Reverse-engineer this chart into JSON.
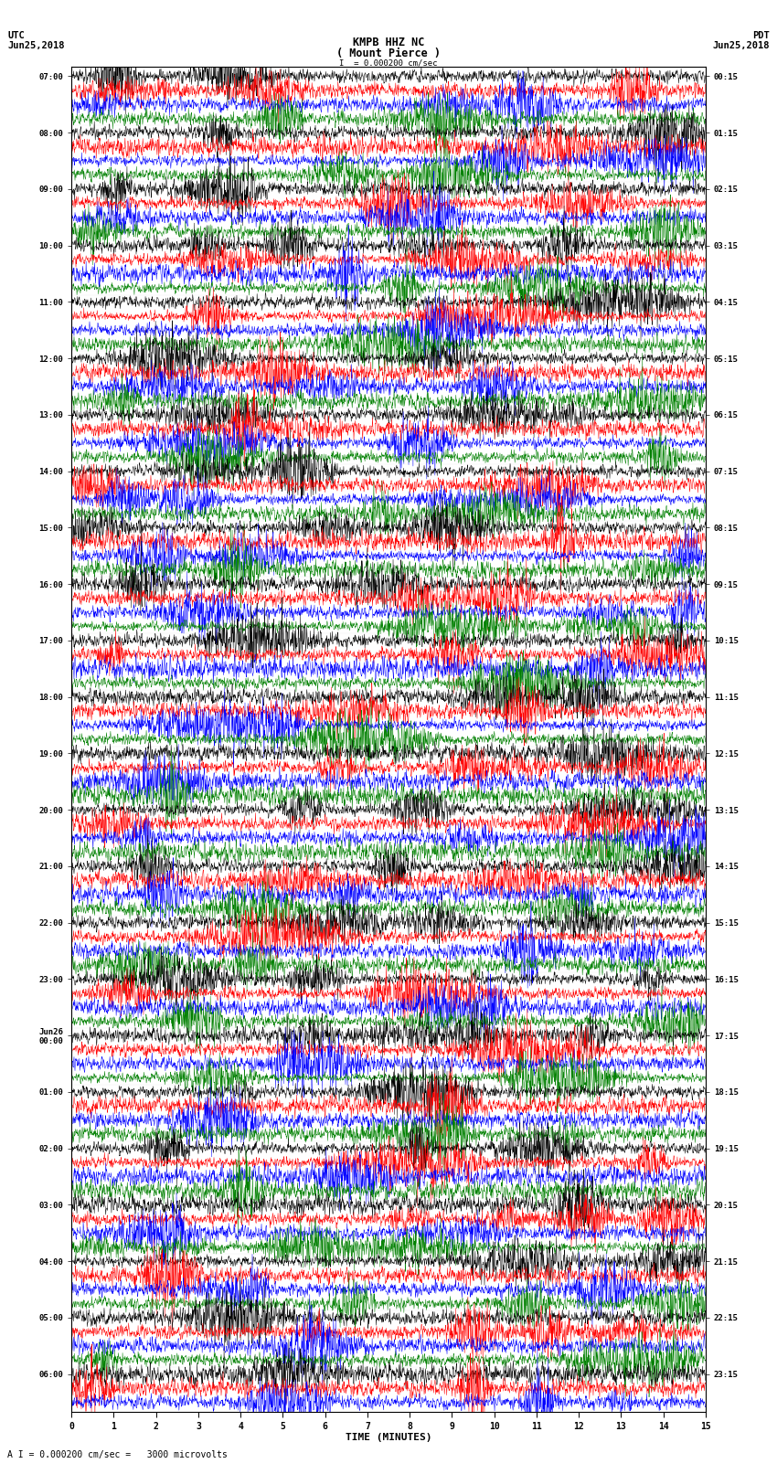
{
  "title_line1": "KMPB HHZ NC",
  "title_line2": "( Mount Pierce )",
  "scale_label": "I  = 0.000200 cm/sec",
  "left_label_top": "UTC",
  "left_label_date": "Jun25,2018",
  "right_label_top": "PDT",
  "right_label_date": "Jun25,2018",
  "bottom_label": "TIME (MINUTES)",
  "scale_annotation": "A I = 0.000200 cm/sec =   3000 microvolts",
  "utc_times": [
    "07:00",
    "",
    "",
    "",
    "08:00",
    "",
    "",
    "",
    "09:00",
    "",
    "",
    "",
    "10:00",
    "",
    "",
    "",
    "11:00",
    "",
    "",
    "",
    "12:00",
    "",
    "",
    "",
    "13:00",
    "",
    "",
    "",
    "14:00",
    "",
    "",
    "",
    "15:00",
    "",
    "",
    "",
    "16:00",
    "",
    "",
    "",
    "17:00",
    "",
    "",
    "",
    "18:00",
    "",
    "",
    "",
    "19:00",
    "",
    "",
    "",
    "20:00",
    "",
    "",
    "",
    "21:00",
    "",
    "",
    "",
    "22:00",
    "",
    "",
    "",
    "23:00",
    "",
    "",
    "",
    "Jun26\n00:00",
    "",
    "",
    "",
    "01:00",
    "",
    "",
    "",
    "02:00",
    "",
    "",
    "",
    "03:00",
    "",
    "",
    "",
    "04:00",
    "",
    "",
    "",
    "05:00",
    "",
    "",
    "",
    "06:00",
    "",
    ""
  ],
  "pdt_times": [
    "00:15",
    "",
    "",
    "",
    "01:15",
    "",
    "",
    "",
    "02:15",
    "",
    "",
    "",
    "03:15",
    "",
    "",
    "",
    "04:15",
    "",
    "",
    "",
    "05:15",
    "",
    "",
    "",
    "06:15",
    "",
    "",
    "",
    "07:15",
    "",
    "",
    "",
    "08:15",
    "",
    "",
    "",
    "09:15",
    "",
    "",
    "",
    "10:15",
    "",
    "",
    "",
    "11:15",
    "",
    "",
    "",
    "12:15",
    "",
    "",
    "",
    "13:15",
    "",
    "",
    "",
    "14:15",
    "",
    "",
    "",
    "15:15",
    "",
    "",
    "",
    "16:15",
    "",
    "",
    "",
    "17:15",
    "",
    "",
    "",
    "18:15",
    "",
    "",
    "",
    "19:15",
    "",
    "",
    "",
    "20:15",
    "",
    "",
    "",
    "21:15",
    "",
    "",
    "",
    "22:15",
    "",
    "",
    "",
    "23:15",
    "",
    ""
  ],
  "trace_colors": [
    "black",
    "red",
    "blue",
    "green"
  ],
  "n_traces": 95,
  "x_min": 0,
  "x_max": 15,
  "x_ticks": [
    0,
    1,
    2,
    3,
    4,
    5,
    6,
    7,
    8,
    9,
    10,
    11,
    12,
    13,
    14,
    15
  ],
  "background_color": "white",
  "amplitude_scale": 0.42,
  "noise_seed": 42
}
